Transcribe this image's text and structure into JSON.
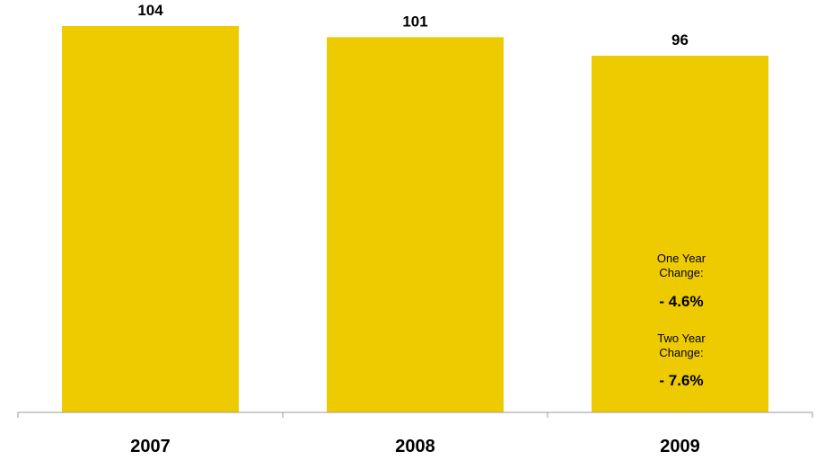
{
  "chart_data": {
    "type": "bar",
    "categories": [
      "2007",
      "2008",
      "2009"
    ],
    "values": [
      104,
      101,
      96
    ],
    "data_labels": [
      "104",
      "101",
      "96"
    ],
    "bar_color": "#EECB00",
    "ylim": [
      0,
      111
    ],
    "grid": false,
    "legend": "none"
  },
  "annotations": {
    "one_year_label_line1": "One Year",
    "one_year_label_line2": "Change:",
    "one_year_value": "- 4.6%",
    "two_year_label_line1": "Two Year",
    "two_year_label_line2": "Change:",
    "two_year_value": "- 7.6%"
  }
}
